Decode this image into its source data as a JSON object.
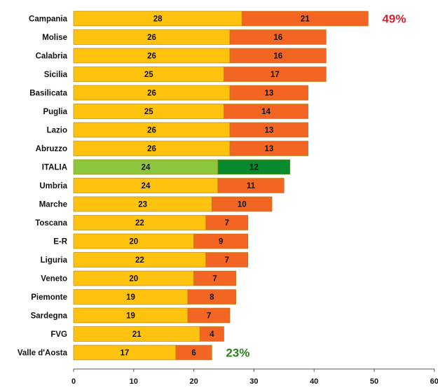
{
  "chart_data": {
    "type": "bar",
    "orientation": "horizontal",
    "stacked": true,
    "categories": [
      "Campania",
      "Molise",
      "Calabria",
      "Sicilia",
      "Basilicata",
      "Puglia",
      "Lazio",
      "Abruzzo",
      "ITALIA",
      "Umbria",
      "Marche",
      "Toscana",
      "E-R",
      "Liguria",
      "Veneto",
      "Piemonte",
      "Sardegna",
      "FVG",
      "Valle d'Aosta"
    ],
    "series": [
      {
        "values": [
          28,
          26,
          26,
          25,
          26,
          25,
          26,
          26,
          24,
          24,
          23,
          22,
          20,
          22,
          20,
          19,
          19,
          21,
          17
        ]
      },
      {
        "values": [
          21,
          16,
          16,
          17,
          13,
          14,
          13,
          13,
          12,
          11,
          10,
          7,
          9,
          7,
          7,
          8,
          7,
          4,
          6
        ]
      }
    ],
    "highlight_category": "ITALIA",
    "xlim": [
      0,
      60
    ],
    "xticks": [
      "0",
      "10",
      "20",
      "30",
      "40",
      "50",
      "60"
    ],
    "grid": false,
    "annotations": [
      {
        "text": "49%",
        "category": "Campania",
        "color": "#e0202e"
      },
      {
        "text": "23%",
        "category": "Valle d'Aosta",
        "color": "#2e7d1e"
      }
    ],
    "colors": {
      "series1": "#ffc20e",
      "series2": "#f26522",
      "highlight1": "#8cc63f",
      "highlight2": "#0a8a2e",
      "bar_border": "#b07a00"
    }
  }
}
